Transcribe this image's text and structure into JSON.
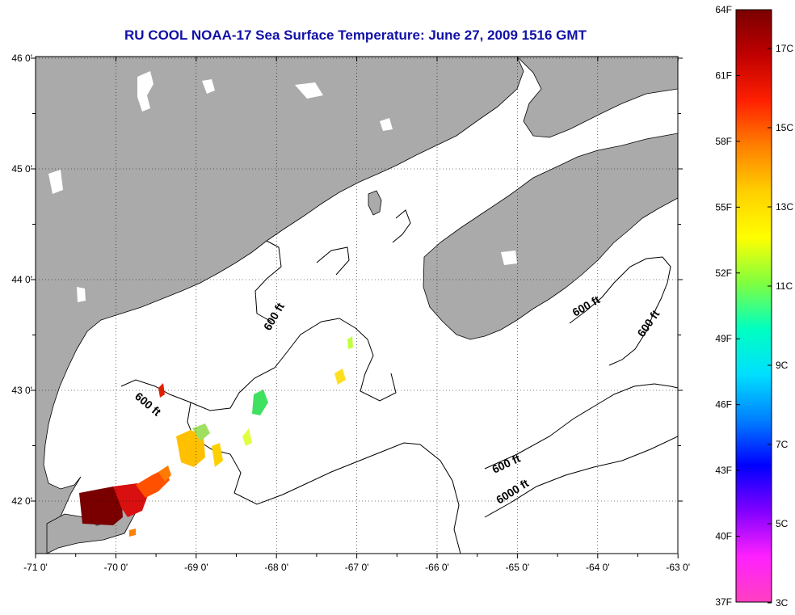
{
  "title": "RU COOL  NOAA-17  Sea Surface Temperature:  June 27, 2009 1516 GMT",
  "map": {
    "lon_ticks": [
      "-71 0'",
      "-70 0'",
      "-69 0'",
      "-68 0'",
      "-67 0'",
      "-66 0'",
      "-65 0'",
      "-64 0'",
      "-63 0'"
    ],
    "lat_ticks": [
      "46 0'",
      "45 0'",
      "44 0'",
      "43 0'",
      "42 0'"
    ],
    "contour_labels": [
      "600 ft",
      "600 ft",
      "600 ft",
      "600 ft",
      "600 ft",
      "6000 ft"
    ],
    "colors": {
      "land": "#aaaaaa",
      "water": "#ffffff",
      "contour": "#000000",
      "title": "#1010a8"
    }
  },
  "colorbar": {
    "fahrenheit": [
      "64F",
      "61F",
      "58F",
      "55F",
      "52F",
      "49F",
      "46F",
      "43F",
      "40F",
      "37F"
    ],
    "celsius": [
      "17C",
      "15C",
      "13C",
      "11C",
      "9C",
      "7C",
      "5C",
      "3C"
    ],
    "gradient": [
      "#7a0000",
      "#c00000",
      "#ff2000",
      "#ff8000",
      "#ffd000",
      "#ffff00",
      "#80ff40",
      "#00ffc0",
      "#00e0ff",
      "#0080ff",
      "#0000ff",
      "#8000ff",
      "#ff20ff",
      "#ff40c0"
    ]
  }
}
